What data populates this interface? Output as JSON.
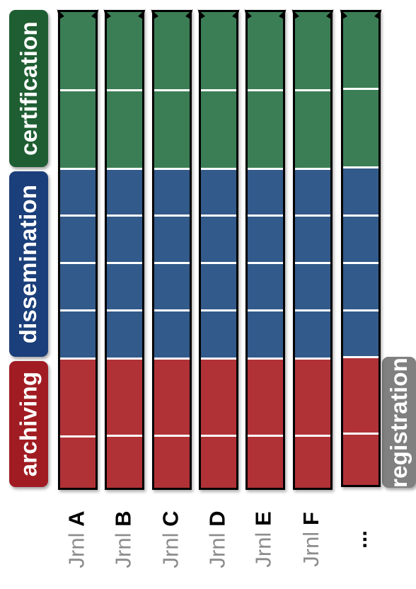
{
  "labels": {
    "certification": "certification",
    "dissemination": "dissemination",
    "archiving": "archiving",
    "registration": "registration"
  },
  "colors": {
    "certification": "#3b7e56",
    "dissemination": "#325a8a",
    "archiving": "#b03236",
    "certification_label": "#1f5e32",
    "dissemination_label": "#1b3f7a",
    "archiving_label": "#a01c22",
    "registration_label": "#808080"
  },
  "columns": [
    {
      "prefix": "Jrnl",
      "letter": "A"
    },
    {
      "prefix": "Jrnl",
      "letter": "B"
    },
    {
      "prefix": "Jrnl",
      "letter": "C"
    },
    {
      "prefix": "Jrnl",
      "letter": "D"
    },
    {
      "prefix": "Jrnl",
      "letter": "E"
    },
    {
      "prefix": "Jrnl",
      "letter": "F"
    },
    {
      "prefix": "",
      "letter": "..."
    }
  ]
}
